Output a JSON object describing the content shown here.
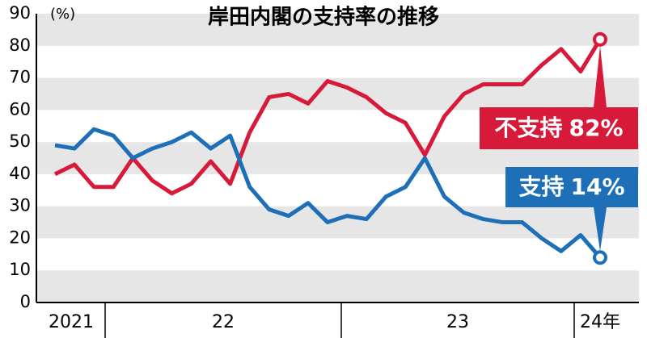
{
  "chart_data": {
    "type": "line",
    "title": "岸田内閣の支持率の推移",
    "y_label": "(%)",
    "categories": [
      null,
      null,
      null,
      null,
      null,
      null,
      null,
      null,
      null,
      null,
      null,
      null,
      null,
      null,
      null,
      null,
      null,
      null,
      null,
      null,
      null,
      null,
      null,
      null,
      null,
      null,
      null,
      null,
      null
    ],
    "year_labels": [
      "2021",
      "22",
      "23",
      "24年"
    ],
    "series": [
      {
        "name": "不支持",
        "color": "#d7193a",
        "values": [
          40,
          43,
          36,
          36,
          45,
          38,
          34,
          37,
          44,
          37,
          53,
          64,
          65,
          62,
          69,
          67,
          64,
          59,
          56,
          46,
          58,
          65,
          68,
          68,
          68,
          74,
          79,
          72,
          82
        ],
        "value_labels": [
          null,
          null,
          null,
          null,
          null,
          null,
          null,
          null,
          null,
          null,
          null,
          null,
          null,
          null,
          null,
          null,
          null,
          null,
          null,
          null,
          null,
          null,
          null,
          null,
          null,
          null,
          null,
          null,
          "82%"
        ]
      },
      {
        "name": "支持",
        "color": "#1d6fb8",
        "values": [
          49,
          48,
          54,
          52,
          45,
          48,
          50,
          53,
          48,
          52,
          36,
          29,
          27,
          31,
          25,
          27,
          26,
          33,
          36,
          45,
          33,
          28,
          26,
          25,
          25,
          20,
          16,
          21,
          14
        ],
        "value_labels": [
          null,
          null,
          null,
          null,
          null,
          null,
          null,
          null,
          null,
          null,
          null,
          null,
          null,
          null,
          null,
          null,
          null,
          null,
          null,
          null,
          null,
          null,
          null,
          null,
          null,
          null,
          null,
          null,
          "14%"
        ]
      }
    ],
    "ylim": [
      0,
      90
    ],
    "yticks": [
      0,
      10,
      20,
      30,
      40,
      50,
      60,
      70,
      80,
      90
    ],
    "grid": true
  }
}
